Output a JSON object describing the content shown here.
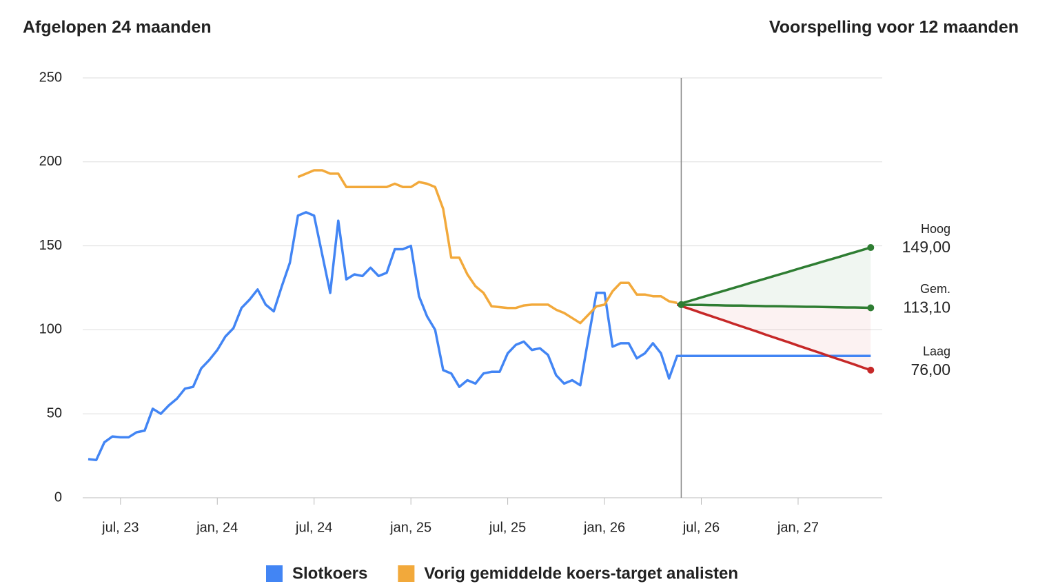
{
  "chart_data": {
    "type": "line",
    "title": "Afgelopen 24 maanden",
    "subtitle": "Voorspelling voor 12 maanden",
    "categories": [
      null,
      null,
      null,
      null,
      "jul, 23",
      null,
      null,
      null,
      null,
      null,
      null,
      null,
      null,
      null,
      null,
      null,
      "jan, 24",
      null,
      null,
      null,
      null,
      null,
      null,
      null,
      null,
      null,
      null,
      null,
      "jul, 24",
      null,
      null,
      null,
      null,
      null,
      null,
      null,
      null,
      null,
      null,
      null,
      "jan, 25",
      null,
      null,
      null,
      null,
      null,
      null,
      null,
      null,
      null,
      null,
      null,
      "jul, 25",
      null,
      null,
      null,
      null,
      null,
      null,
      null,
      null,
      null,
      null,
      null,
      "jan, 26",
      null,
      null,
      null,
      null,
      null,
      null,
      null,
      null,
      null,
      null,
      null,
      "jul, 26",
      null,
      null,
      null,
      null,
      null,
      null,
      null,
      null,
      null,
      null,
      null,
      "jan, 27",
      null,
      null,
      null,
      null,
      null,
      null,
      null,
      null,
      null,
      null
    ],
    "series": [
      {
        "name": "Slotkoers",
        "color": "#4285f4",
        "values": [
          23,
          22.5,
          33,
          36.5,
          36,
          36,
          39,
          40,
          53,
          50,
          55,
          59,
          65,
          66,
          77,
          82,
          88,
          96,
          101,
          113,
          118,
          124,
          115,
          111,
          126,
          140,
          168,
          170,
          168,
          145,
          122,
          165,
          130,
          133,
          132,
          137,
          132,
          134,
          148,
          148,
          150,
          120,
          108,
          100,
          76,
          74,
          66,
          70,
          68,
          74,
          75,
          75,
          86,
          91,
          93,
          88,
          89,
          85,
          73,
          68,
          70,
          67,
          95,
          122,
          122,
          90,
          92,
          92,
          83,
          86,
          92,
          86,
          71,
          84.5,
          84.5,
          84.5,
          84.5,
          84.5,
          84.5,
          84.5,
          84.5,
          84.5,
          84.5,
          84.5,
          84.5,
          84.5,
          84.5,
          84.5,
          84.5,
          84.5,
          84.5,
          84.5,
          84.5,
          84.5,
          84.5,
          84.5,
          84.5,
          84.5,
          null
        ]
      },
      {
        "name": "Vorig gemiddelde koers-target analisten",
        "color": "#f2a93b",
        "values": [
          null,
          null,
          null,
          null,
          null,
          null,
          null,
          null,
          null,
          null,
          null,
          null,
          null,
          null,
          null,
          null,
          null,
          null,
          null,
          null,
          null,
          null,
          null,
          null,
          null,
          null,
          191,
          193,
          195,
          195,
          193,
          193,
          185,
          185,
          185,
          185,
          185,
          185,
          187,
          185,
          185,
          188,
          187,
          185,
          172,
          143,
          143,
          133,
          126,
          122,
          114,
          113.5,
          113,
          113,
          114.5,
          115,
          115,
          115,
          112,
          110,
          107,
          104,
          109,
          114,
          115,
          123,
          128,
          128,
          121,
          121,
          120,
          120,
          117,
          116,
          null,
          null,
          null,
          null,
          null,
          null,
          null,
          null,
          null,
          null,
          null,
          null,
          null,
          null,
          null,
          null,
          null,
          null,
          null,
          null,
          null,
          null,
          null,
          null,
          null
        ]
      }
    ],
    "forecast": [
      {
        "name": "Hoog",
        "color": "#2e7d32",
        "values": [
          null,
          null,
          null,
          null,
          null,
          null,
          null,
          null,
          null,
          null,
          null,
          null,
          null,
          null,
          null,
          null,
          null,
          null,
          null,
          null,
          null,
          null,
          null,
          null,
          null,
          null,
          null,
          null,
          null,
          null,
          null,
          null,
          null,
          null,
          null,
          null,
          null,
          null,
          null,
          null,
          null,
          null,
          null,
          null,
          null,
          null,
          null,
          null,
          null,
          null,
          null,
          null,
          null,
          null,
          null,
          null,
          null,
          null,
          null,
          null,
          null,
          null,
          null,
          null,
          null,
          null,
          null,
          null,
          null,
          null,
          null,
          null,
          null,
          115,
          116.4,
          117.8,
          119.3,
          120.7,
          122.1,
          123.5,
          124.9,
          126.3,
          127.8,
          129.2,
          130.6,
          132,
          133.4,
          134.8,
          136.3,
          137.7,
          139.1,
          140.5,
          141.9,
          143.3,
          144.8,
          146.2,
          147.6,
          149,
          null
        ],
        "value_labels": [
          null,
          null,
          null,
          null,
          null,
          null,
          null,
          null,
          null,
          null,
          null,
          null,
          null,
          null,
          null,
          null,
          null,
          null,
          null,
          null,
          null,
          null,
          null,
          null,
          null,
          null,
          null,
          null,
          null,
          null,
          null,
          null,
          null,
          null,
          null,
          null,
          null,
          null,
          null,
          null,
          null,
          null,
          null,
          null,
          null,
          null,
          null,
          null,
          null,
          null,
          null,
          null,
          null,
          null,
          null,
          null,
          null,
          null,
          null,
          null,
          null,
          null,
          null,
          null,
          null,
          null,
          null,
          null,
          null,
          null,
          null,
          null,
          null,
          null,
          null,
          null,
          null,
          null,
          null,
          null,
          null,
          null,
          null,
          null,
          null,
          null,
          null,
          null,
          null,
          null,
          null,
          null,
          null,
          null,
          null,
          null,
          null,
          "149,00",
          null
        ]
      },
      {
        "name": "Gem.",
        "color": "#2e7d32",
        "values": [
          null,
          null,
          null,
          null,
          null,
          null,
          null,
          null,
          null,
          null,
          null,
          null,
          null,
          null,
          null,
          null,
          null,
          null,
          null,
          null,
          null,
          null,
          null,
          null,
          null,
          null,
          null,
          null,
          null,
          null,
          null,
          null,
          null,
          null,
          null,
          null,
          null,
          null,
          null,
          null,
          null,
          null,
          null,
          null,
          null,
          null,
          null,
          null,
          null,
          null,
          null,
          null,
          null,
          null,
          null,
          null,
          null,
          null,
          null,
          null,
          null,
          null,
          null,
          null,
          null,
          null,
          null,
          null,
          null,
          null,
          null,
          null,
          null,
          115,
          114.9,
          114.8,
          114.8,
          114.7,
          114.6,
          114.5,
          114.4,
          114.4,
          114.3,
          114.2,
          114.1,
          114.1,
          114,
          113.9,
          113.8,
          113.7,
          113.7,
          113.6,
          113.5,
          113.4,
          113.3,
          113.3,
          113.2,
          113.1,
          null
        ],
        "value_labels": [
          null,
          null,
          null,
          null,
          null,
          null,
          null,
          null,
          null,
          null,
          null,
          null,
          null,
          null,
          null,
          null,
          null,
          null,
          null,
          null,
          null,
          null,
          null,
          null,
          null,
          null,
          null,
          null,
          null,
          null,
          null,
          null,
          null,
          null,
          null,
          null,
          null,
          null,
          null,
          null,
          null,
          null,
          null,
          null,
          null,
          null,
          null,
          null,
          null,
          null,
          null,
          null,
          null,
          null,
          null,
          null,
          null,
          null,
          null,
          null,
          null,
          null,
          null,
          null,
          null,
          null,
          null,
          null,
          null,
          null,
          null,
          null,
          null,
          null,
          null,
          null,
          null,
          null,
          null,
          null,
          null,
          null,
          null,
          null,
          null,
          null,
          null,
          null,
          null,
          null,
          null,
          null,
          null,
          null,
          null,
          null,
          null,
          "113,10",
          null
        ]
      },
      {
        "name": "Laag",
        "color": "#c62828",
        "values": [
          null,
          null,
          null,
          null,
          null,
          null,
          null,
          null,
          null,
          null,
          null,
          null,
          null,
          null,
          null,
          null,
          null,
          null,
          null,
          null,
          null,
          null,
          null,
          null,
          null,
          null,
          null,
          null,
          null,
          null,
          null,
          null,
          null,
          null,
          null,
          null,
          null,
          null,
          null,
          null,
          null,
          null,
          null,
          null,
          null,
          null,
          null,
          null,
          null,
          null,
          null,
          null,
          null,
          null,
          null,
          null,
          null,
          null,
          null,
          null,
          null,
          null,
          null,
          null,
          null,
          null,
          null,
          null,
          null,
          null,
          null,
          null,
          null,
          115,
          113.4,
          111.8,
          110.1,
          108.5,
          106.9,
          105.3,
          103.6,
          102,
          100.4,
          98.8,
          97.1,
          95.5,
          93.9,
          92.3,
          90.6,
          89,
          87.4,
          85.8,
          84.1,
          82.5,
          80.9,
          79.3,
          77.6,
          76,
          null
        ],
        "value_labels": [
          null,
          null,
          null,
          null,
          null,
          null,
          null,
          null,
          null,
          null,
          null,
          null,
          null,
          null,
          null,
          null,
          null,
          null,
          null,
          null,
          null,
          null,
          null,
          null,
          null,
          null,
          null,
          null,
          null,
          null,
          null,
          null,
          null,
          null,
          null,
          null,
          null,
          null,
          null,
          null,
          null,
          null,
          null,
          null,
          null,
          null,
          null,
          null,
          null,
          null,
          null,
          null,
          null,
          null,
          null,
          null,
          null,
          null,
          null,
          null,
          null,
          null,
          null,
          null,
          null,
          null,
          null,
          null,
          null,
          null,
          null,
          null,
          null,
          null,
          null,
          null,
          null,
          null,
          null,
          null,
          null,
          null,
          null,
          null,
          null,
          null,
          null,
          null,
          null,
          null,
          null,
          null,
          null,
          null,
          null,
          null,
          null,
          "76,00",
          null
        ]
      }
    ],
    "ylim": [
      0,
      250
    ],
    "yticks": [
      0,
      50,
      100,
      150,
      200,
      250
    ],
    "grid": true,
    "legend": "bottom"
  }
}
